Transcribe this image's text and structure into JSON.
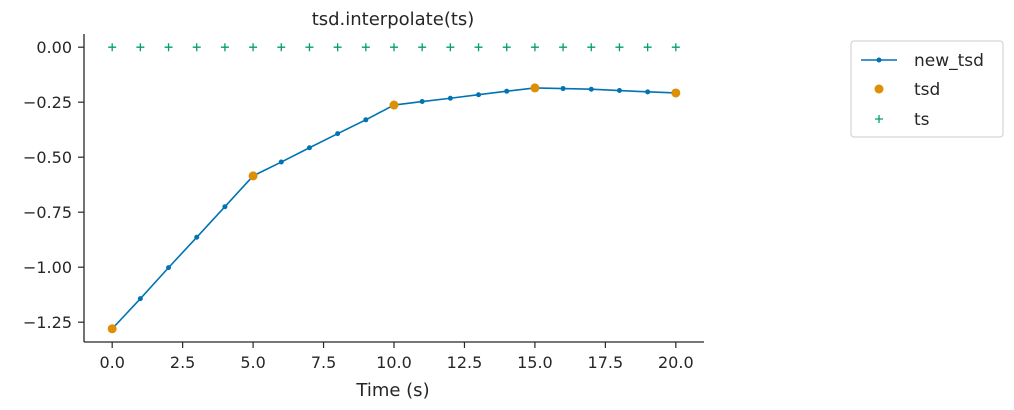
{
  "chart_data": {
    "type": "line",
    "title": "tsd.interpolate(ts)",
    "xlabel": "Time (s)",
    "ylabel": "",
    "xlim": [
      -1,
      21
    ],
    "ylim": [
      -1.34,
      0.06
    ],
    "xticks": [
      0.0,
      2.5,
      5.0,
      7.5,
      10.0,
      12.5,
      15.0,
      17.5,
      20.0
    ],
    "xtick_labels": [
      "0.0",
      "2.5",
      "5.0",
      "7.5",
      "10.0",
      "12.5",
      "15.0",
      "17.5",
      "20.0"
    ],
    "yticks": [
      0.0,
      -0.25,
      -0.5,
      -0.75,
      -1.0,
      -1.25
    ],
    "ytick_labels": [
      "0.00",
      "−0.25",
      "−0.50",
      "−0.75",
      "−1.00",
      "−1.25"
    ],
    "legend_position": "outside-right-top",
    "series": [
      {
        "name": "new_tsd",
        "style": "line-with-dots",
        "color": "#0173b2",
        "x": [
          0,
          1,
          2,
          3,
          4,
          5,
          6,
          7,
          8,
          9,
          10,
          11,
          12,
          13,
          14,
          15,
          16,
          17,
          18,
          19,
          20
        ],
        "y": [
          -1.28,
          -1.143,
          -1.002,
          -0.864,
          -0.725,
          -0.585,
          -0.522,
          -0.457,
          -0.393,
          -0.33,
          -0.263,
          -0.247,
          -0.232,
          -0.216,
          -0.2,
          -0.185,
          -0.188,
          -0.191,
          -0.197,
          -0.203,
          -0.208
        ]
      },
      {
        "name": "tsd",
        "style": "markers",
        "color": "#de8f05",
        "x": [
          0,
          5,
          10,
          15,
          20
        ],
        "y": [
          -1.28,
          -0.585,
          -0.263,
          -0.185,
          -0.208
        ]
      },
      {
        "name": "ts",
        "style": "plus",
        "color": "#029e73",
        "x": [
          0,
          1,
          2,
          3,
          4,
          5,
          6,
          7,
          8,
          9,
          10,
          11,
          12,
          13,
          14,
          15,
          16,
          17,
          18,
          19,
          20
        ],
        "y": [
          0,
          0,
          0,
          0,
          0,
          0,
          0,
          0,
          0,
          0,
          0,
          0,
          0,
          0,
          0,
          0,
          0,
          0,
          0,
          0,
          0
        ]
      }
    ]
  }
}
